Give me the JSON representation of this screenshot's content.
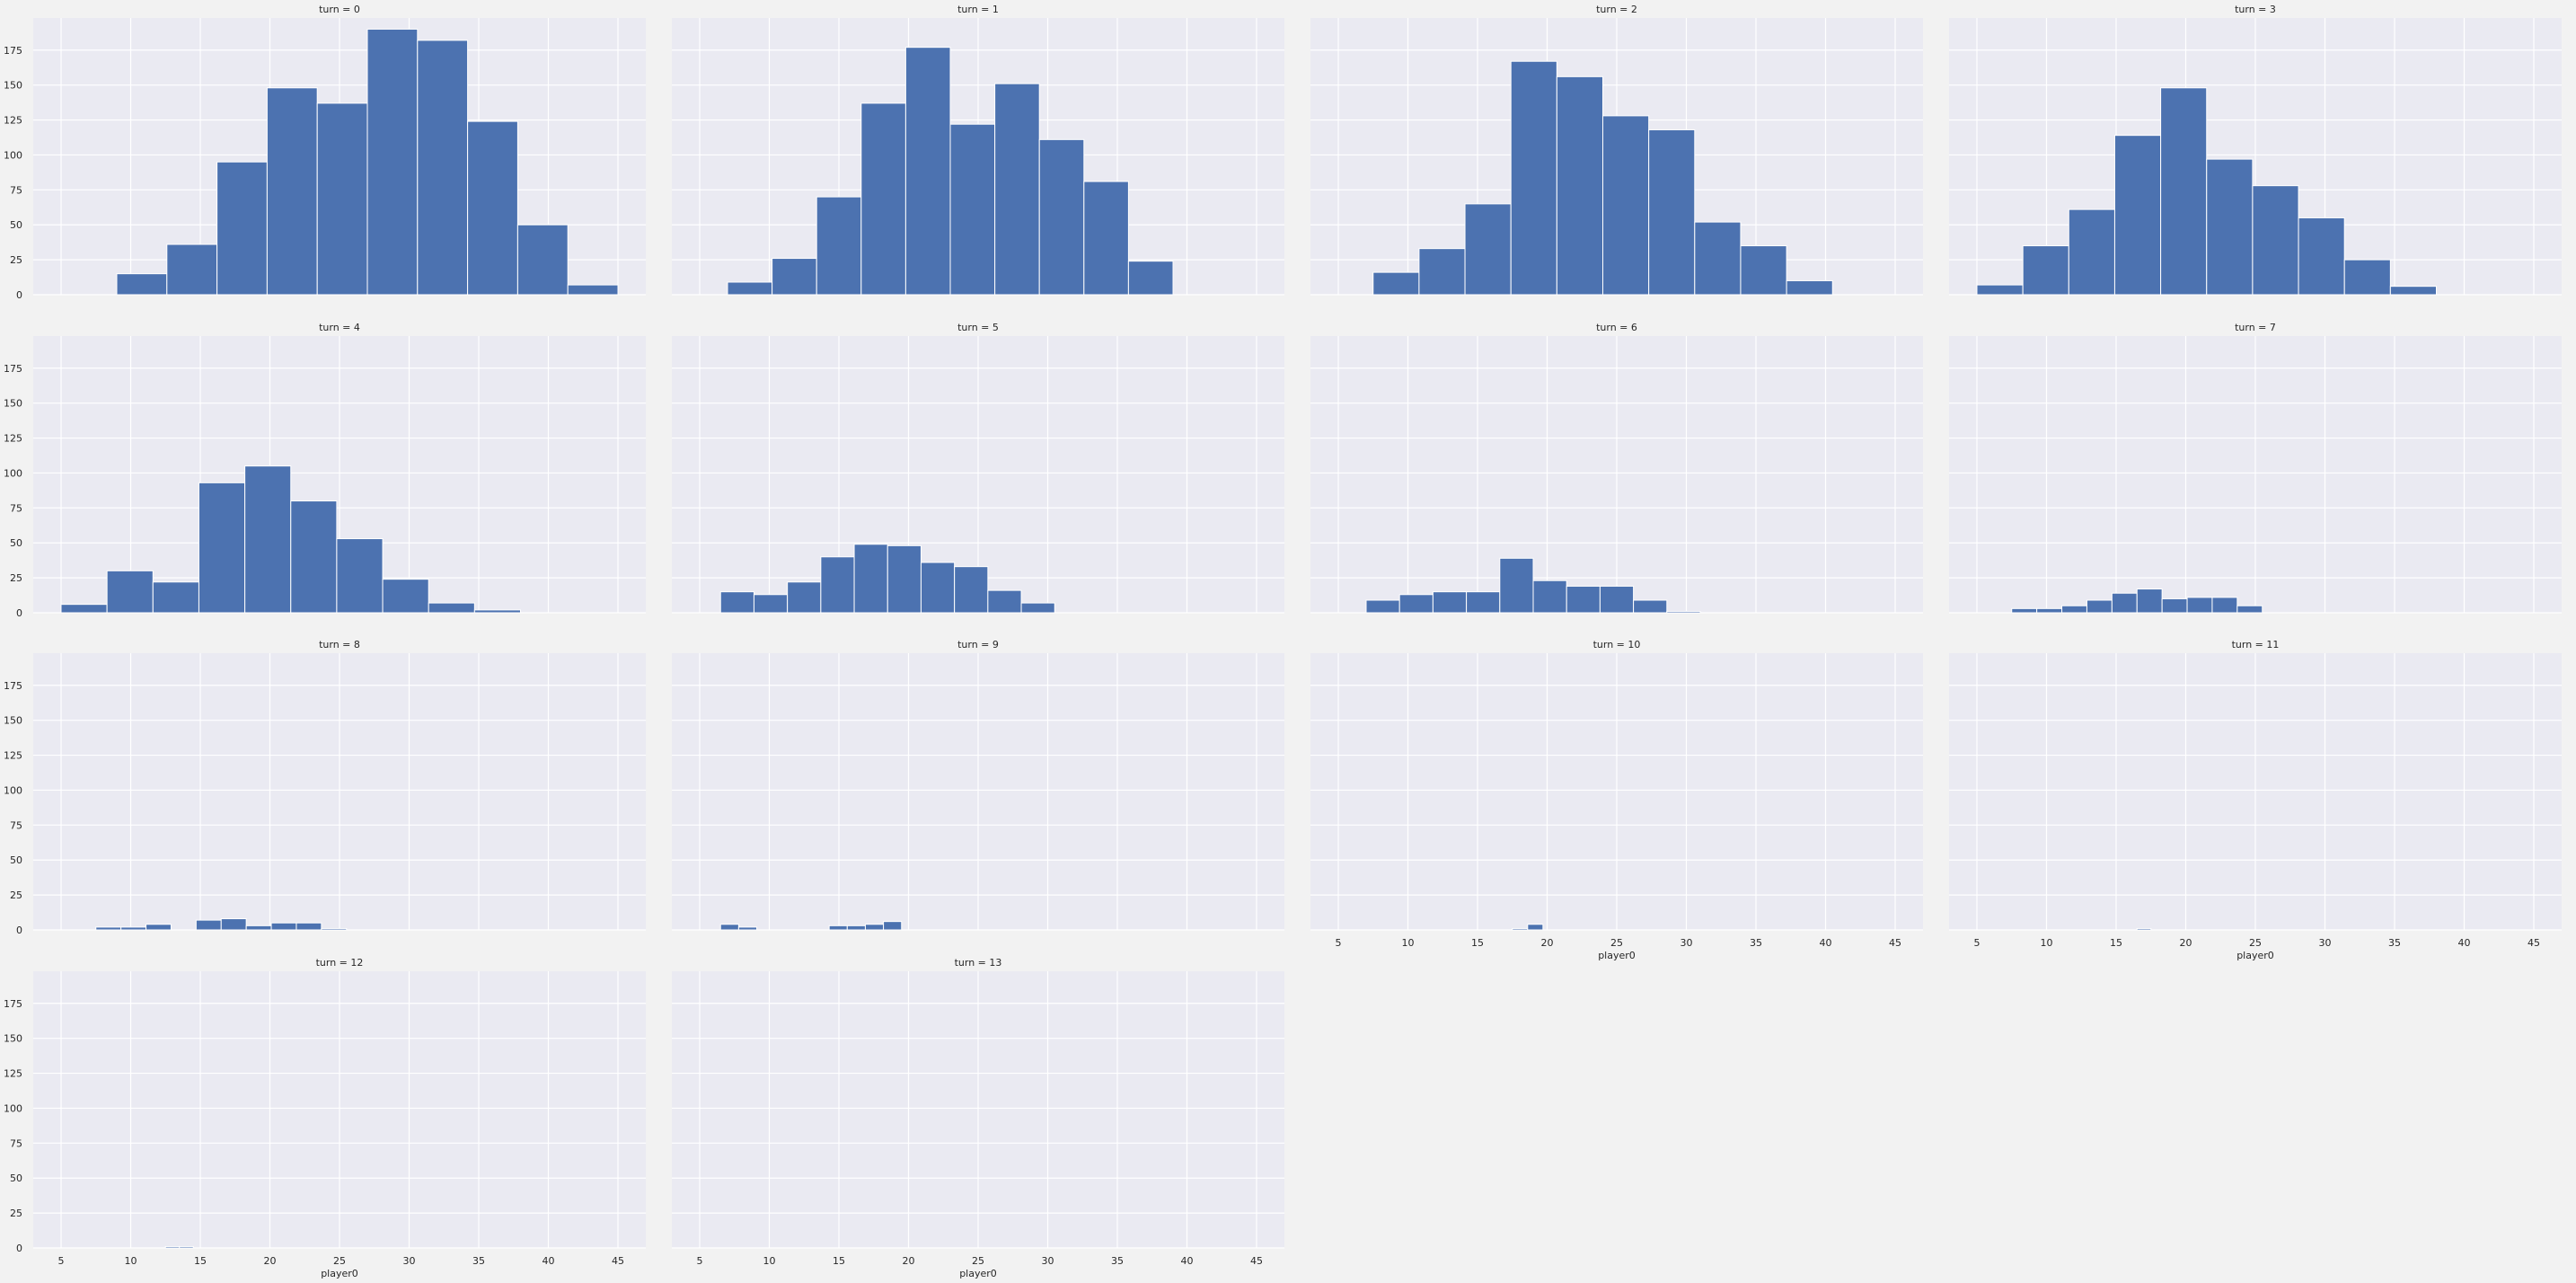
{
  "chart_data": {
    "type": "bar",
    "kind": "faceted-histogram",
    "facet_prefix": "turn = ",
    "facet_columns": 4,
    "xlabel": "player0",
    "ylabel": "",
    "xlim": [
      3,
      47
    ],
    "ylim": [
      0,
      198
    ],
    "xticks": [
      5,
      10,
      15,
      20,
      25,
      30,
      35,
      40,
      45
    ],
    "yticks": [
      0,
      25,
      50,
      75,
      100,
      125,
      150,
      175
    ],
    "grid": true,
    "bar_color": "#4c72b0",
    "panel_background": "#eaeaf2",
    "facets": [
      {
        "turn": 0,
        "title": "turn = 0",
        "bins": [
          {
            "x0": 9.0,
            "x1": 12.6,
            "count": 15
          },
          {
            "x0": 12.6,
            "x1": 16.2,
            "count": 36
          },
          {
            "x0": 16.2,
            "x1": 19.8,
            "count": 95
          },
          {
            "x0": 19.8,
            "x1": 23.4,
            "count": 148
          },
          {
            "x0": 23.4,
            "x1": 27.0,
            "count": 137
          },
          {
            "x0": 27.0,
            "x1": 30.6,
            "count": 190
          },
          {
            "x0": 30.6,
            "x1": 34.2,
            "count": 182
          },
          {
            "x0": 34.2,
            "x1": 37.8,
            "count": 124
          },
          {
            "x0": 37.8,
            "x1": 41.4,
            "count": 50
          },
          {
            "x0": 41.4,
            "x1": 45.0,
            "count": 7
          }
        ]
      },
      {
        "turn": 1,
        "title": "turn = 1",
        "bins": [
          {
            "x0": 7.0,
            "x1": 10.2,
            "count": 9
          },
          {
            "x0": 10.2,
            "x1": 13.4,
            "count": 26
          },
          {
            "x0": 13.4,
            "x1": 16.6,
            "count": 70
          },
          {
            "x0": 16.6,
            "x1": 19.8,
            "count": 137
          },
          {
            "x0": 19.8,
            "x1": 23.0,
            "count": 177
          },
          {
            "x0": 23.0,
            "x1": 26.2,
            "count": 122
          },
          {
            "x0": 26.2,
            "x1": 29.4,
            "count": 151
          },
          {
            "x0": 29.4,
            "x1": 32.6,
            "count": 111
          },
          {
            "x0": 32.6,
            "x1": 35.8,
            "count": 81
          },
          {
            "x0": 35.8,
            "x1": 39.0,
            "count": 24
          }
        ]
      },
      {
        "turn": 2,
        "title": "turn = 2",
        "bins": [
          {
            "x0": 7.5,
            "x1": 10.8,
            "count": 16
          },
          {
            "x0": 10.8,
            "x1": 14.1,
            "count": 33
          },
          {
            "x0": 14.1,
            "x1": 17.4,
            "count": 65
          },
          {
            "x0": 17.4,
            "x1": 20.7,
            "count": 167
          },
          {
            "x0": 20.7,
            "x1": 24.0,
            "count": 156
          },
          {
            "x0": 24.0,
            "x1": 27.3,
            "count": 128
          },
          {
            "x0": 27.3,
            "x1": 30.6,
            "count": 118
          },
          {
            "x0": 30.6,
            "x1": 33.9,
            "count": 52
          },
          {
            "x0": 33.9,
            "x1": 37.2,
            "count": 35
          },
          {
            "x0": 37.2,
            "x1": 40.5,
            "count": 10
          }
        ]
      },
      {
        "turn": 3,
        "title": "turn = 3",
        "bins": [
          {
            "x0": 5.0,
            "x1": 8.3,
            "count": 7
          },
          {
            "x0": 8.3,
            "x1": 11.6,
            "count": 35
          },
          {
            "x0": 11.6,
            "x1": 14.9,
            "count": 61
          },
          {
            "x0": 14.9,
            "x1": 18.2,
            "count": 114
          },
          {
            "x0": 18.2,
            "x1": 21.5,
            "count": 148
          },
          {
            "x0": 21.5,
            "x1": 24.8,
            "count": 97
          },
          {
            "x0": 24.8,
            "x1": 28.1,
            "count": 78
          },
          {
            "x0": 28.1,
            "x1": 31.4,
            "count": 55
          },
          {
            "x0": 31.4,
            "x1": 34.7,
            "count": 25
          },
          {
            "x0": 34.7,
            "x1": 38.0,
            "count": 6
          }
        ]
      },
      {
        "turn": 4,
        "title": "turn = 4",
        "bins": [
          {
            "x0": 5.0,
            "x1": 8.3,
            "count": 6
          },
          {
            "x0": 8.3,
            "x1": 11.6,
            "count": 30
          },
          {
            "x0": 11.6,
            "x1": 14.9,
            "count": 22
          },
          {
            "x0": 14.9,
            "x1": 18.2,
            "count": 93
          },
          {
            "x0": 18.2,
            "x1": 21.5,
            "count": 105
          },
          {
            "x0": 21.5,
            "x1": 24.8,
            "count": 80
          },
          {
            "x0": 24.8,
            "x1": 28.1,
            "count": 53
          },
          {
            "x0": 28.1,
            "x1": 31.4,
            "count": 24
          },
          {
            "x0": 31.4,
            "x1": 34.7,
            "count": 7
          },
          {
            "x0": 34.7,
            "x1": 38.0,
            "count": 2
          }
        ]
      },
      {
        "turn": 5,
        "title": "turn = 5",
        "bins": [
          {
            "x0": 6.5,
            "x1": 8.9,
            "count": 15
          },
          {
            "x0": 8.9,
            "x1": 11.3,
            "count": 13
          },
          {
            "x0": 11.3,
            "x1": 13.7,
            "count": 22
          },
          {
            "x0": 13.7,
            "x1": 16.1,
            "count": 40
          },
          {
            "x0": 16.1,
            "x1": 18.5,
            "count": 49
          },
          {
            "x0": 18.5,
            "x1": 20.9,
            "count": 48
          },
          {
            "x0": 20.9,
            "x1": 23.3,
            "count": 36
          },
          {
            "x0": 23.3,
            "x1": 25.7,
            "count": 33
          },
          {
            "x0": 25.7,
            "x1": 28.1,
            "count": 16
          },
          {
            "x0": 28.1,
            "x1": 30.5,
            "count": 7
          }
        ]
      },
      {
        "turn": 6,
        "title": "turn = 6",
        "bins": [
          {
            "x0": 7.0,
            "x1": 9.4,
            "count": 9
          },
          {
            "x0": 9.4,
            "x1": 11.8,
            "count": 13
          },
          {
            "x0": 11.8,
            "x1": 14.2,
            "count": 15
          },
          {
            "x0": 14.2,
            "x1": 16.6,
            "count": 15
          },
          {
            "x0": 16.6,
            "x1": 19.0,
            "count": 39
          },
          {
            "x0": 19.0,
            "x1": 21.4,
            "count": 23
          },
          {
            "x0": 21.4,
            "x1": 23.8,
            "count": 19
          },
          {
            "x0": 23.8,
            "x1": 26.2,
            "count": 19
          },
          {
            "x0": 26.2,
            "x1": 28.6,
            "count": 9
          },
          {
            "x0": 28.6,
            "x1": 31.0,
            "count": 1
          }
        ]
      },
      {
        "turn": 7,
        "title": "turn = 7",
        "bins": [
          {
            "x0": 7.5,
            "x1": 9.3,
            "count": 3
          },
          {
            "x0": 9.3,
            "x1": 11.1,
            "count": 3
          },
          {
            "x0": 11.1,
            "x1": 12.9,
            "count": 5
          },
          {
            "x0": 12.9,
            "x1": 14.7,
            "count": 9
          },
          {
            "x0": 14.7,
            "x1": 16.5,
            "count": 14
          },
          {
            "x0": 16.5,
            "x1": 18.3,
            "count": 17
          },
          {
            "x0": 18.3,
            "x1": 20.1,
            "count": 10
          },
          {
            "x0": 20.1,
            "x1": 21.9,
            "count": 11
          },
          {
            "x0": 21.9,
            "x1": 23.7,
            "count": 11
          },
          {
            "x0": 23.7,
            "x1": 25.5,
            "count": 5
          }
        ]
      },
      {
        "turn": 8,
        "title": "turn = 8",
        "bins": [
          {
            "x0": 7.5,
            "x1": 9.3,
            "count": 2
          },
          {
            "x0": 9.3,
            "x1": 11.1,
            "count": 2
          },
          {
            "x0": 11.1,
            "x1": 12.9,
            "count": 4
          },
          {
            "x0": 12.9,
            "x1": 14.7,
            "count": 0
          },
          {
            "x0": 14.7,
            "x1": 16.5,
            "count": 7
          },
          {
            "x0": 16.5,
            "x1": 18.3,
            "count": 8
          },
          {
            "x0": 18.3,
            "x1": 20.1,
            "count": 3
          },
          {
            "x0": 20.1,
            "x1": 21.9,
            "count": 5
          },
          {
            "x0": 21.9,
            "x1": 23.7,
            "count": 5
          },
          {
            "x0": 23.7,
            "x1": 25.5,
            "count": 1
          }
        ]
      },
      {
        "turn": 9,
        "title": "turn = 9",
        "bins": [
          {
            "x0": 6.5,
            "x1": 7.8,
            "count": 4
          },
          {
            "x0": 7.8,
            "x1": 9.1,
            "count": 2
          },
          {
            "x0": 9.1,
            "x1": 10.4,
            "count": 0
          },
          {
            "x0": 10.4,
            "x1": 11.7,
            "count": 0
          },
          {
            "x0": 11.7,
            "x1": 13.0,
            "count": 0
          },
          {
            "x0": 13.0,
            "x1": 14.3,
            "count": 0
          },
          {
            "x0": 14.3,
            "x1": 15.6,
            "count": 3
          },
          {
            "x0": 15.6,
            "x1": 16.9,
            "count": 3
          },
          {
            "x0": 16.9,
            "x1": 18.2,
            "count": 4
          },
          {
            "x0": 18.2,
            "x1": 19.5,
            "count": 6
          }
        ]
      },
      {
        "turn": 10,
        "title": "turn = 10",
        "bins": [
          {
            "x0": 17.5,
            "x1": 18.6,
            "count": 1
          },
          {
            "x0": 18.6,
            "x1": 19.7,
            "count": 4
          }
        ]
      },
      {
        "turn": 11,
        "title": "turn = 11",
        "bins": [
          {
            "x0": 16.5,
            "x1": 17.5,
            "count": 1
          }
        ]
      },
      {
        "turn": 12,
        "title": "turn = 12",
        "bins": [
          {
            "x0": 12.5,
            "x1": 13.5,
            "count": 1
          },
          {
            "x0": 13.5,
            "x1": 14.5,
            "count": 1
          }
        ]
      },
      {
        "turn": 13,
        "title": "turn = 13",
        "bins": []
      }
    ]
  }
}
